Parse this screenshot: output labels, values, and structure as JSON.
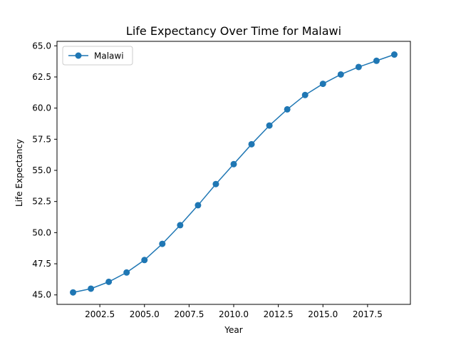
{
  "chart_data": {
    "type": "line",
    "title": "Life Expectancy Over Time for Malawi",
    "xlabel": "Year",
    "ylabel": "Life Expectancy",
    "xlim": [
      2000.1,
      2019.9
    ],
    "ylim": [
      44.24,
      65.36
    ],
    "xticks": [
      2002.5,
      2005.0,
      2007.5,
      2010.0,
      2012.5,
      2015.0,
      2017.5
    ],
    "xtick_labels": [
      "2002.5",
      "2005.0",
      "2007.5",
      "2010.0",
      "2012.5",
      "2015.0",
      "2017.5"
    ],
    "yticks": [
      45.0,
      47.5,
      50.0,
      52.5,
      55.0,
      57.5,
      60.0,
      62.5,
      65.0
    ],
    "ytick_labels": [
      "45.0",
      "47.5",
      "50.0",
      "52.5",
      "55.0",
      "57.5",
      "60.0",
      "62.5",
      "65.0"
    ],
    "grid": false,
    "legend_position": "upper-left",
    "series": [
      {
        "name": "Malawi",
        "color": "#1f77b4",
        "marker": "circle",
        "x": [
          2001,
          2002,
          2003,
          2004,
          2005,
          2006,
          2007,
          2008,
          2009,
          2010,
          2011,
          2012,
          2013,
          2014,
          2015,
          2016,
          2017,
          2018,
          2019
        ],
        "y": [
          45.2,
          45.5,
          46.05,
          46.8,
          47.8,
          49.1,
          50.6,
          52.2,
          53.9,
          55.5,
          57.1,
          58.6,
          59.9,
          61.05,
          61.95,
          62.7,
          63.3,
          63.8,
          64.3
        ]
      }
    ]
  }
}
